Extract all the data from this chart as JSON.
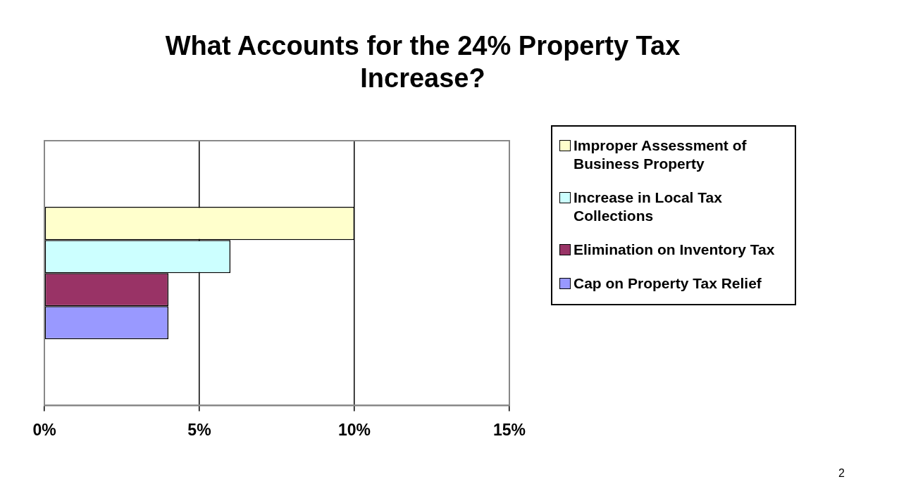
{
  "chart_data": {
    "type": "bar",
    "orientation": "horizontal",
    "title": "What Accounts for the 24% Property Tax Increase?",
    "categories": [
      null
    ],
    "series": [
      {
        "name": "Improper Assessment of Business Property",
        "color": "#ffffcc",
        "values": [
          10
        ]
      },
      {
        "name": "Increase in Local Tax Collections",
        "color": "#ccffff",
        "values": [
          6
        ]
      },
      {
        "name": "Elimination on Inventory Tax",
        "color": "#993366",
        "values": [
          4
        ]
      },
      {
        "name": "Cap on Property Tax Relief",
        "color": "#9999ff",
        "values": [
          4
        ]
      }
    ],
    "xlim": [
      0,
      15
    ],
    "xticks": [
      {
        "value": 0,
        "label": "0%"
      },
      {
        "value": 5,
        "label": "5%"
      },
      {
        "value": 10,
        "label": "10%"
      },
      {
        "value": 15,
        "label": "15%"
      }
    ],
    "tick_labels": "x",
    "grid": "x",
    "legend": "right",
    "annotations": [
      "2"
    ]
  }
}
